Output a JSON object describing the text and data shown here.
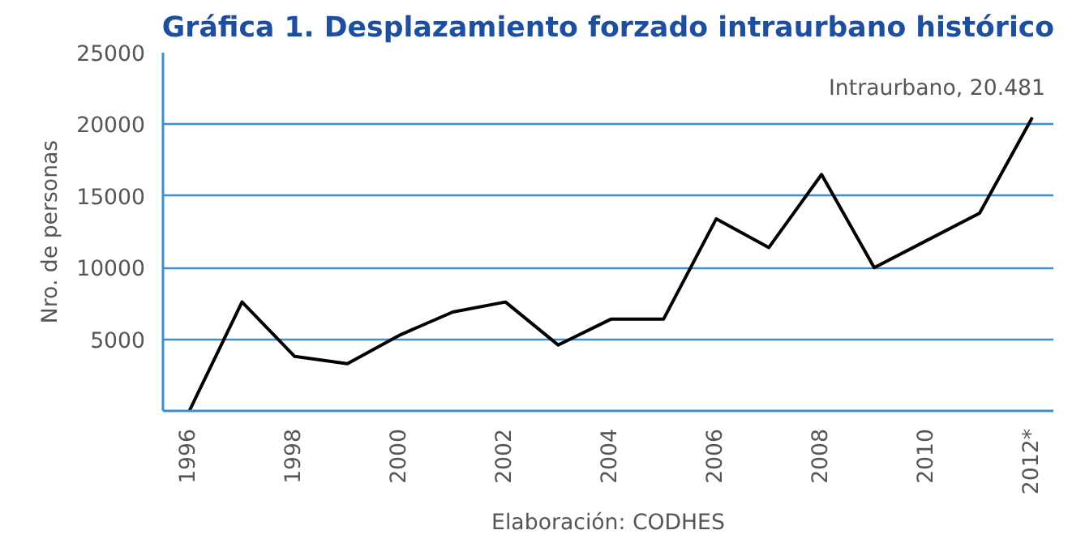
{
  "chart_data": {
    "type": "line",
    "title": "Gráfica 1. Desplazamiento forzado intraurbano histórico",
    "ylabel": "Nro. de personas",
    "x": [
      1996,
      1997,
      1998,
      1999,
      2000,
      2001,
      2002,
      2003,
      2004,
      2005,
      2006,
      2007,
      2008,
      2009,
      2010,
      2011,
      2012
    ],
    "series": [
      {
        "color": "#000000",
        "values": [
          0,
          7600,
          3800,
          3300,
          5300,
          6900,
          7600,
          4600,
          6400,
          6400,
          13400,
          11400,
          16500,
          10000,
          11900,
          13800,
          20481
        ]
      }
    ],
    "xlim": [
      1995.5,
      2012.4
    ],
    "xticks": [
      1996,
      1998,
      2000,
      2002,
      2004,
      2006,
      2008,
      2010,
      {
        "value": 2012,
        "label": "2012*"
      }
    ],
    "ylim": [
      0,
      25000
    ],
    "yticks": [
      5000,
      10000,
      15000,
      20000,
      25000
    ],
    "grid": "y",
    "marker": "none",
    "line_style": "solid",
    "annotations": [
      {
        "text": "Intraurbano, 20.481",
        "x": 2012,
        "y": 20481
      },
      "Elaboración: CODHES"
    ]
  }
}
